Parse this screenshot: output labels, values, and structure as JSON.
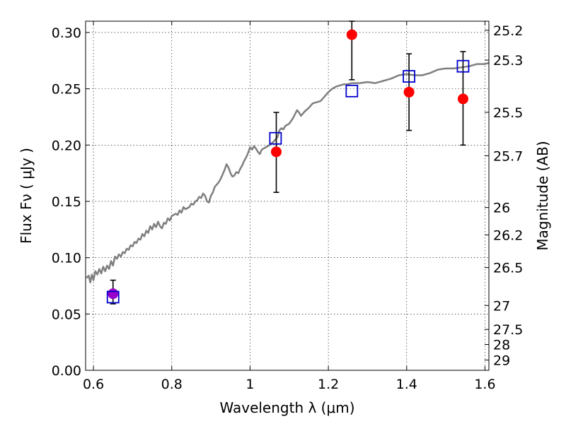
{
  "chart_data": {
    "type": "scatter",
    "title": "",
    "xlabel": "Wavelength  λ (μm)",
    "ylabel": "Flux  Fν  ( μJy )",
    "y2label": "Magnitude (AB)",
    "xlim": [
      0.58,
      1.61
    ],
    "ylim": [
      0.0,
      0.31
    ],
    "grid": true,
    "x_ticks": [
      {
        "value": 0.6,
        "label": "0.6"
      },
      {
        "value": 0.8,
        "label": "0.8"
      },
      {
        "value": 1.0,
        "label": "1"
      },
      {
        "value": 1.2,
        "label": "1.2"
      },
      {
        "value": 1.4,
        "label": "1.4"
      },
      {
        "value": 1.6,
        "label": "1.6"
      }
    ],
    "y_ticks": [
      {
        "value": 0.0,
        "label": "0.00"
      },
      {
        "value": 0.05,
        "label": "0.05"
      },
      {
        "value": 0.1,
        "label": "0.10"
      },
      {
        "value": 0.15,
        "label": "0.15"
      },
      {
        "value": 0.2,
        "label": "0.20"
      },
      {
        "value": 0.25,
        "label": "0.25"
      },
      {
        "value": 0.3,
        "label": "0.30"
      }
    ],
    "y2_ticks": [
      {
        "value": 25.2,
        "label": "25.2"
      },
      {
        "value": 25.3,
        "label": "25.3"
      },
      {
        "value": 25.5,
        "label": "25.5"
      },
      {
        "value": 25.7,
        "label": "25.7"
      },
      {
        "value": 26.0,
        "label": "26"
      },
      {
        "value": 26.2,
        "label": "26.2"
      },
      {
        "value": 26.5,
        "label": "26.5"
      },
      {
        "value": 27.0,
        "label": "27"
      },
      {
        "value": 27.5,
        "label": "27.5"
      },
      {
        "value": 28.0,
        "label": "28"
      },
      {
        "value": 29.0,
        "label": "29"
      }
    ],
    "series": [
      {
        "kind": "line",
        "color": "#7f7f7f",
        "points": [
          [
            0.582,
            0.082
          ],
          [
            0.588,
            0.084
          ],
          [
            0.592,
            0.078
          ],
          [
            0.596,
            0.085
          ],
          [
            0.6,
            0.08
          ],
          [
            0.605,
            0.088
          ],
          [
            0.61,
            0.085
          ],
          [
            0.615,
            0.09
          ],
          [
            0.62,
            0.086
          ],
          [
            0.625,
            0.092
          ],
          [
            0.63,
            0.088
          ],
          [
            0.635,
            0.093
          ],
          [
            0.64,
            0.09
          ],
          [
            0.645,
            0.097
          ],
          [
            0.65,
            0.093
          ],
          [
            0.655,
            0.101
          ],
          [
            0.66,
            0.099
          ],
          [
            0.665,
            0.103
          ],
          [
            0.67,
            0.101
          ],
          [
            0.675,
            0.105
          ],
          [
            0.68,
            0.104
          ],
          [
            0.685,
            0.108
          ],
          [
            0.69,
            0.107
          ],
          [
            0.695,
            0.111
          ],
          [
            0.7,
            0.11
          ],
          [
            0.705,
            0.114
          ],
          [
            0.71,
            0.113
          ],
          [
            0.715,
            0.117
          ],
          [
            0.72,
            0.116
          ],
          [
            0.725,
            0.121
          ],
          [
            0.73,
            0.119
          ],
          [
            0.735,
            0.124
          ],
          [
            0.74,
            0.122
          ],
          [
            0.745,
            0.128
          ],
          [
            0.75,
            0.125
          ],
          [
            0.755,
            0.13
          ],
          [
            0.76,
            0.127
          ],
          [
            0.765,
            0.132
          ],
          [
            0.77,
            0.128
          ],
          [
            0.775,
            0.126
          ],
          [
            0.78,
            0.131
          ],
          [
            0.785,
            0.13
          ],
          [
            0.79,
            0.135
          ],
          [
            0.795,
            0.133
          ],
          [
            0.8,
            0.137
          ],
          [
            0.805,
            0.138
          ],
          [
            0.81,
            0.139
          ],
          [
            0.815,
            0.138
          ],
          [
            0.82,
            0.142
          ],
          [
            0.825,
            0.14
          ],
          [
            0.83,
            0.145
          ],
          [
            0.835,
            0.143
          ],
          [
            0.84,
            0.144
          ],
          [
            0.845,
            0.145
          ],
          [
            0.85,
            0.148
          ],
          [
            0.855,
            0.147
          ],
          [
            0.86,
            0.15
          ],
          [
            0.865,
            0.151
          ],
          [
            0.87,
            0.154
          ],
          [
            0.875,
            0.153
          ],
          [
            0.88,
            0.157
          ],
          [
            0.885,
            0.155
          ],
          [
            0.89,
            0.15
          ],
          [
            0.895,
            0.149
          ],
          [
            0.9,
            0.155
          ],
          [
            0.905,
            0.158
          ],
          [
            0.91,
            0.163
          ],
          [
            0.915,
            0.165
          ],
          [
            0.92,
            0.167
          ],
          [
            0.925,
            0.17
          ],
          [
            0.93,
            0.174
          ],
          [
            0.935,
            0.178
          ],
          [
            0.94,
            0.183
          ],
          [
            0.945,
            0.18
          ],
          [
            0.95,
            0.175
          ],
          [
            0.955,
            0.172
          ],
          [
            0.96,
            0.173
          ],
          [
            0.965,
            0.176
          ],
          [
            0.97,
            0.175
          ],
          [
            0.975,
            0.179
          ],
          [
            0.98,
            0.182
          ],
          [
            0.985,
            0.186
          ],
          [
            0.99,
            0.189
          ],
          [
            0.995,
            0.193
          ],
          [
            1.0,
            0.198
          ],
          [
            1.005,
            0.196
          ],
          [
            1.01,
            0.199
          ],
          [
            1.015,
            0.197
          ],
          [
            1.02,
            0.194
          ],
          [
            1.025,
            0.192
          ],
          [
            1.03,
            0.196
          ],
          [
            1.04,
            0.198
          ],
          [
            1.05,
            0.2
          ],
          [
            1.06,
            0.203
          ],
          [
            1.07,
            0.207
          ],
          [
            1.075,
            0.213
          ],
          [
            1.08,
            0.215
          ],
          [
            1.085,
            0.214
          ],
          [
            1.09,
            0.217
          ],
          [
            1.1,
            0.219
          ],
          [
            1.11,
            0.224
          ],
          [
            1.12,
            0.231
          ],
          [
            1.125,
            0.229
          ],
          [
            1.13,
            0.226
          ],
          [
            1.14,
            0.23
          ],
          [
            1.15,
            0.233
          ],
          [
            1.16,
            0.237
          ],
          [
            1.17,
            0.238
          ],
          [
            1.18,
            0.239
          ],
          [
            1.19,
            0.243
          ],
          [
            1.2,
            0.247
          ],
          [
            1.21,
            0.25
          ],
          [
            1.22,
            0.252
          ],
          [
            1.23,
            0.253
          ],
          [
            1.24,
            0.254
          ],
          [
            1.25,
            0.254
          ],
          [
            1.26,
            0.255
          ],
          [
            1.28,
            0.255
          ],
          [
            1.3,
            0.256
          ],
          [
            1.32,
            0.255
          ],
          [
            1.33,
            0.256
          ],
          [
            1.34,
            0.257
          ],
          [
            1.36,
            0.259
          ],
          [
            1.38,
            0.262
          ],
          [
            1.4,
            0.263
          ],
          [
            1.42,
            0.262
          ],
          [
            1.44,
            0.262
          ],
          [
            1.46,
            0.264
          ],
          [
            1.48,
            0.267
          ],
          [
            1.5,
            0.268
          ],
          [
            1.52,
            0.268
          ],
          [
            1.54,
            0.269
          ],
          [
            1.56,
            0.27
          ],
          [
            1.58,
            0.272
          ],
          [
            1.6,
            0.272
          ],
          [
            1.61,
            0.273
          ]
        ]
      },
      {
        "kind": "points",
        "marker": "circle",
        "color": "#ff0000",
        "points": [
          {
            "x": 1.067,
            "y": 0.194,
            "ylo": 0.158,
            "yhi": 0.229
          },
          {
            "x": 1.26,
            "y": 0.298,
            "ylo": 0.258,
            "yhi": 0.31
          },
          {
            "x": 1.406,
            "y": 0.247,
            "ylo": 0.213,
            "yhi": 0.281
          },
          {
            "x": 1.544,
            "y": 0.241,
            "ylo": 0.2,
            "yhi": 0.283
          }
        ]
      },
      {
        "kind": "points",
        "marker": "circle",
        "color": "#9900cc",
        "points": [
          {
            "x": 0.65,
            "y": 0.068,
            "ylo": 0.059,
            "yhi": 0.08
          }
        ]
      },
      {
        "kind": "points",
        "marker": "open-square",
        "color": "#0000cc",
        "points": [
          {
            "x": 0.65,
            "y": 0.065
          },
          {
            "x": 1.065,
            "y": 0.206
          },
          {
            "x": 1.26,
            "y": 0.248
          },
          {
            "x": 1.406,
            "y": 0.261
          },
          {
            "x": 1.544,
            "y": 0.27
          }
        ]
      }
    ]
  }
}
